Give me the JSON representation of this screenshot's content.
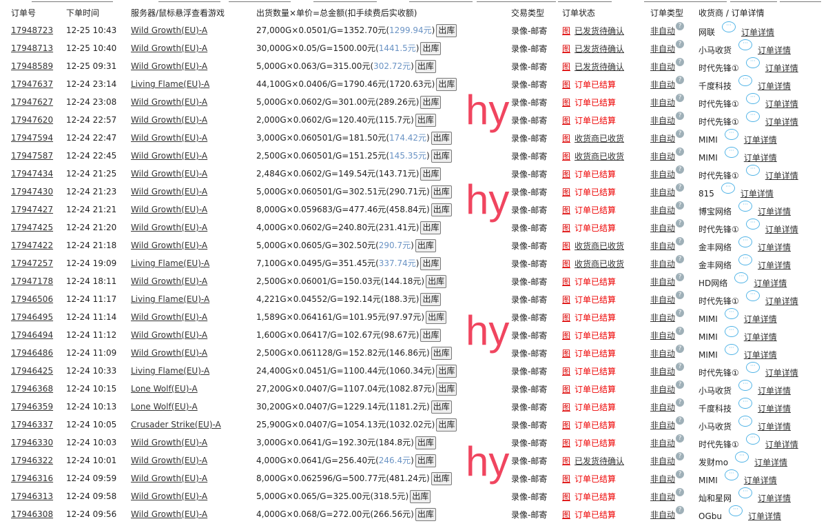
{
  "headers": [
    "订单号",
    "下单时间",
    "服务器/鼠标悬浮查看游戏",
    "出货数量×单价=总金额(扣手续费后实收额)",
    "交易类型",
    "订单状态",
    "订单类型",
    "收货商 / 订单详情"
  ],
  "labels": {
    "ship_button": "出库",
    "trade_type": "录像-邮寄",
    "status_icon": "图",
    "order_type": "非自动",
    "help": "?",
    "detail": "订单详情",
    "bubble": "···"
  },
  "colors": {
    "net_pending": "#6a93c4",
    "settled": "#e00000",
    "watermark": "#f0455f",
    "chat": "#4fb3e6"
  },
  "watermarks": [
    "hy",
    "hy",
    "hy",
    "hy"
  ],
  "rows": [
    {
      "id": "17948723",
      "time": "12-25 10:43",
      "server": "Wild Growth(EU)-A",
      "amount": "27,000G×0.0501/G=1352.70元",
      "net": "1299.94元",
      "net_blue": true,
      "status": "已发货待确认",
      "status_kind": "link",
      "receiver": "网联"
    },
    {
      "id": "17948713",
      "time": "12-25 10:40",
      "server": "Wild Growth(EU)-A",
      "amount": "30,000G×0.05/G=1500.00元",
      "net": "1441.5元",
      "net_blue": true,
      "status": "已发货待确认",
      "status_kind": "link",
      "receiver": "小马收货"
    },
    {
      "id": "17948589",
      "time": "12-25 09:31",
      "server": "Wild Growth(EU)-A",
      "amount": "5,000G×0.063/G=315.00元",
      "net": "302.72元",
      "net_blue": true,
      "status": "已发货待确认",
      "status_kind": "link",
      "receiver": "时代先锋①"
    },
    {
      "id": "17947637",
      "time": "12-24 23:14",
      "server": "Living Flame(EU)-A",
      "amount": "44,100G×0.0406/G=1790.46元",
      "net": "1720.63元",
      "net_blue": false,
      "status": "订单已结算",
      "status_kind": "settled",
      "receiver": "千度科技"
    },
    {
      "id": "17947627",
      "time": "12-24 23:08",
      "server": "Wild Growth(EU)-A",
      "amount": "5,000G×0.0602/G=301.00元",
      "net": "289.26元",
      "net_blue": false,
      "status": "订单已结算",
      "status_kind": "settled",
      "receiver": "时代先锋①"
    },
    {
      "id": "17947620",
      "time": "12-24 22:57",
      "server": "Wild Growth(EU)-A",
      "amount": "2,000G×0.0602/G=120.40元",
      "net": "115.7元",
      "net_blue": false,
      "status": "订单已结算",
      "status_kind": "settled",
      "receiver": "时代先锋①"
    },
    {
      "id": "17947594",
      "time": "12-24 22:47",
      "server": "Wild Growth(EU)-A",
      "amount": "3,000G×0.060501/G=181.50元",
      "net": "174.42元",
      "net_blue": true,
      "status": "收货商已收货",
      "status_kind": "link",
      "receiver": "MIMI"
    },
    {
      "id": "17947587",
      "time": "12-24 22:45",
      "server": "Wild Growth(EU)-A",
      "amount": "2,500G×0.060501/G=151.25元",
      "net": "145.35元",
      "net_blue": true,
      "status": "收货商已收货",
      "status_kind": "link",
      "receiver": "MIMI"
    },
    {
      "id": "17947434",
      "time": "12-24 21:25",
      "server": "Wild Growth(EU)-A",
      "amount": "2,484G×0.0602/G=149.54元",
      "net": "143.71元",
      "net_blue": false,
      "status": "订单已结算",
      "status_kind": "settled",
      "receiver": "时代先锋①"
    },
    {
      "id": "17947430",
      "time": "12-24 21:23",
      "server": "Wild Growth(EU)-A",
      "amount": "5,000G×0.060501/G=302.51元",
      "net": "290.71元",
      "net_blue": false,
      "status": "订单已结算",
      "status_kind": "settled",
      "receiver": "815"
    },
    {
      "id": "17947427",
      "time": "12-24 21:21",
      "server": "Wild Growth(EU)-A",
      "amount": "8,000G×0.059683/G=477.46元",
      "net": "458.84元",
      "net_blue": false,
      "status": "订单已结算",
      "status_kind": "settled",
      "receiver": "博宝网络"
    },
    {
      "id": "17947425",
      "time": "12-24 21:20",
      "server": "Wild Growth(EU)-A",
      "amount": "4,000G×0.0602/G=240.80元",
      "net": "231.41元",
      "net_blue": false,
      "status": "订单已结算",
      "status_kind": "settled",
      "receiver": "时代先锋①"
    },
    {
      "id": "17947422",
      "time": "12-24 21:18",
      "server": "Wild Growth(EU)-A",
      "amount": "5,000G×0.0605/G=302.50元",
      "net": "290.7元",
      "net_blue": true,
      "status": "收货商已收货",
      "status_kind": "link",
      "receiver": "金丰网络"
    },
    {
      "id": "17947257",
      "time": "12-24 19:09",
      "server": "Living Flame(EU)-A",
      "amount": "7,100G×0.0495/G=351.45元",
      "net": "337.74元",
      "net_blue": true,
      "status": "收货商已收货",
      "status_kind": "link",
      "receiver": "金丰网络"
    },
    {
      "id": "17947178",
      "time": "12-24 18:11",
      "server": "Wild Growth(EU)-A",
      "amount": "2,500G×0.06001/G=150.03元",
      "net": "144.18元",
      "net_blue": false,
      "status": "订单已结算",
      "status_kind": "settled",
      "receiver": "HD网络"
    },
    {
      "id": "17946506",
      "time": "12-24 11:17",
      "server": "Living Flame(EU)-A",
      "amount": "4,221G×0.04552/G=192.14元",
      "net": "188.3元",
      "net_blue": false,
      "status": "订单已结算",
      "status_kind": "settled",
      "receiver": "时代先锋①"
    },
    {
      "id": "17946495",
      "time": "12-24 11:14",
      "server": "Wild Growth(EU)-A",
      "amount": "1,589G×0.064161/G=101.95元",
      "net": "97.97元",
      "net_blue": false,
      "status": "订单已结算",
      "status_kind": "settled",
      "receiver": "MIMI"
    },
    {
      "id": "17946494",
      "time": "12-24 11:12",
      "server": "Wild Growth(EU)-A",
      "amount": "1,600G×0.06417/G=102.67元",
      "net": "98.67元",
      "net_blue": false,
      "status": "订单已结算",
      "status_kind": "settled",
      "receiver": "MIMI"
    },
    {
      "id": "17946486",
      "time": "12-24 11:09",
      "server": "Wild Growth(EU)-A",
      "amount": "2,500G×0.061128/G=152.82元",
      "net": "146.86元",
      "net_blue": false,
      "status": "订单已结算",
      "status_kind": "settled",
      "receiver": "MIMI"
    },
    {
      "id": "17946425",
      "time": "12-24 10:33",
      "server": "Living Flame(EU)-A",
      "amount": "24,400G×0.0451/G=1100.44元",
      "net": "1060.34元",
      "net_blue": false,
      "status": "订单已结算",
      "status_kind": "settled",
      "receiver": "时代先锋①"
    },
    {
      "id": "17946368",
      "time": "12-24 10:15",
      "server": "Lone Wolf(EU)-A",
      "amount": "27,200G×0.0407/G=1107.04元",
      "net": "1082.87元",
      "net_blue": false,
      "status": "订单已结算",
      "status_kind": "settled",
      "receiver": "小马收货"
    },
    {
      "id": "17946359",
      "time": "12-24 10:13",
      "server": "Lone Wolf(EU)-A",
      "amount": "30,200G×0.0407/G=1229.14元",
      "net": "1181.2元",
      "net_blue": false,
      "status": "订单已结算",
      "status_kind": "settled",
      "receiver": "千度科技"
    },
    {
      "id": "17946337",
      "time": "12-24 10:05",
      "server": "Crusader Strike(EU)-A",
      "amount": "25,900G×0.0407/G=1054.13元",
      "net": "1032.02元",
      "net_blue": false,
      "status": "订单已结算",
      "status_kind": "settled",
      "receiver": "小马收货"
    },
    {
      "id": "17946330",
      "time": "12-24 10:03",
      "server": "Wild Growth(EU)-A",
      "amount": "3,000G×0.0641/G=192.30元",
      "net": "184.8元",
      "net_blue": false,
      "status": "订单已结算",
      "status_kind": "settled",
      "receiver": "时代先锋①"
    },
    {
      "id": "17946322",
      "time": "12-24 10:01",
      "server": "Wild Growth(EU)-A",
      "amount": "4,000G×0.0641/G=256.40元",
      "net": "246.4元",
      "net_blue": true,
      "status": "已发货待确认",
      "status_kind": "link",
      "receiver": "发财mo"
    },
    {
      "id": "17946316",
      "time": "12-24 09:59",
      "server": "Wild Growth(EU)-A",
      "amount": "8,000G×0.062596/G=500.77元",
      "net": "481.24元",
      "net_blue": false,
      "status": "订单已结算",
      "status_kind": "settled",
      "receiver": "MIMI"
    },
    {
      "id": "17946313",
      "time": "12-24 09:58",
      "server": "Wild Growth(EU)-A",
      "amount": "5,000G×0.065/G=325.00元",
      "net": "318.5元",
      "net_blue": false,
      "status": "订单已结算",
      "status_kind": "settled",
      "receiver": "灿和星网"
    },
    {
      "id": "17946308",
      "time": "12-24 09:56",
      "server": "Wild Growth(EU)-A",
      "amount": "4,000G×0.068/G=272.00元",
      "net": "266.56元",
      "net_blue": false,
      "status": "订单已结算",
      "status_kind": "settled",
      "receiver": "OGbu"
    }
  ]
}
